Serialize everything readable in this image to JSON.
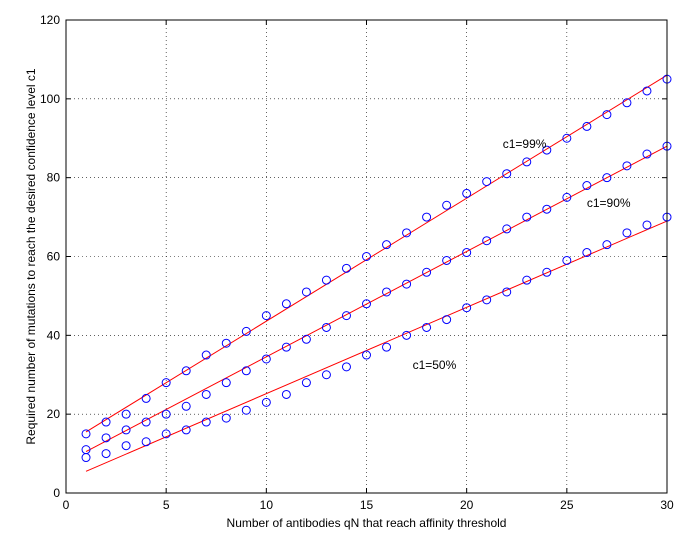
{
  "chart_data": {
    "type": "scatter",
    "xlabel": "Number of antibodies qN that reach affinity threshold",
    "ylabel": "Required number of mutations to reach the desired confidence level c1",
    "xlim": [
      0,
      30
    ],
    "ylim": [
      0,
      120
    ],
    "xticks": [
      "0",
      "5",
      "10",
      "15",
      "20",
      "25",
      "30"
    ],
    "yticks": [
      "0",
      "20",
      "40",
      "60",
      "80",
      "100",
      "120"
    ],
    "grid": true,
    "colors": {
      "markers": "#0000ff",
      "fit": "#ff0000",
      "grid": "#000000"
    },
    "series": [
      {
        "x": [
          1,
          2,
          3,
          4,
          5,
          6,
          7,
          8,
          9,
          10,
          11,
          12,
          13,
          14,
          15,
          16,
          17,
          18,
          19,
          20,
          21,
          22,
          23,
          24,
          25,
          26,
          27,
          28,
          29,
          30
        ],
        "values": [
          15,
          18,
          20,
          24,
          28,
          31,
          35,
          38,
          41,
          45,
          48,
          51,
          54,
          57,
          60,
          63,
          66,
          70,
          73,
          76,
          79,
          81,
          84,
          87,
          90,
          93,
          96,
          99,
          102,
          105
        ],
        "fit": [
          15.5,
          106
        ]
      },
      {
        "x": [
          1,
          2,
          3,
          4,
          5,
          6,
          7,
          8,
          9,
          10,
          11,
          12,
          13,
          14,
          15,
          16,
          17,
          18,
          19,
          20,
          21,
          22,
          23,
          24,
          25,
          26,
          27,
          28,
          29,
          30
        ],
        "values": [
          11,
          14,
          16,
          18,
          20,
          22,
          25,
          28,
          31,
          34,
          37,
          39,
          42,
          45,
          48,
          51,
          53,
          56,
          59,
          61,
          64,
          67,
          70,
          72,
          75,
          78,
          80,
          83,
          86,
          88
        ],
        "fit": [
          10.5,
          88
        ]
      },
      {
        "x": [
          1,
          2,
          3,
          4,
          5,
          6,
          7,
          8,
          9,
          10,
          11,
          12,
          13,
          14,
          15,
          16,
          17,
          18,
          19,
          20,
          21,
          22,
          23,
          24,
          25,
          26,
          27,
          28,
          29,
          30
        ],
        "values": [
          9,
          10,
          12,
          13,
          15,
          16,
          18,
          19,
          21,
          23,
          25,
          28,
          30,
          32,
          35,
          37,
          40,
          42,
          44,
          47,
          49,
          51,
          54,
          56,
          59,
          61,
          63,
          66,
          68,
          70
        ],
        "fit": [
          5.5,
          69
        ]
      }
    ],
    "annotations": [
      {
        "text": "c1=99%",
        "x": 21.8,
        "y": 87.5
      },
      {
        "text": "c1=90%",
        "x": 26,
        "y": 72.5
      },
      {
        "text": "c1=50%",
        "x": 17.3,
        "y": 31.5
      }
    ]
  }
}
